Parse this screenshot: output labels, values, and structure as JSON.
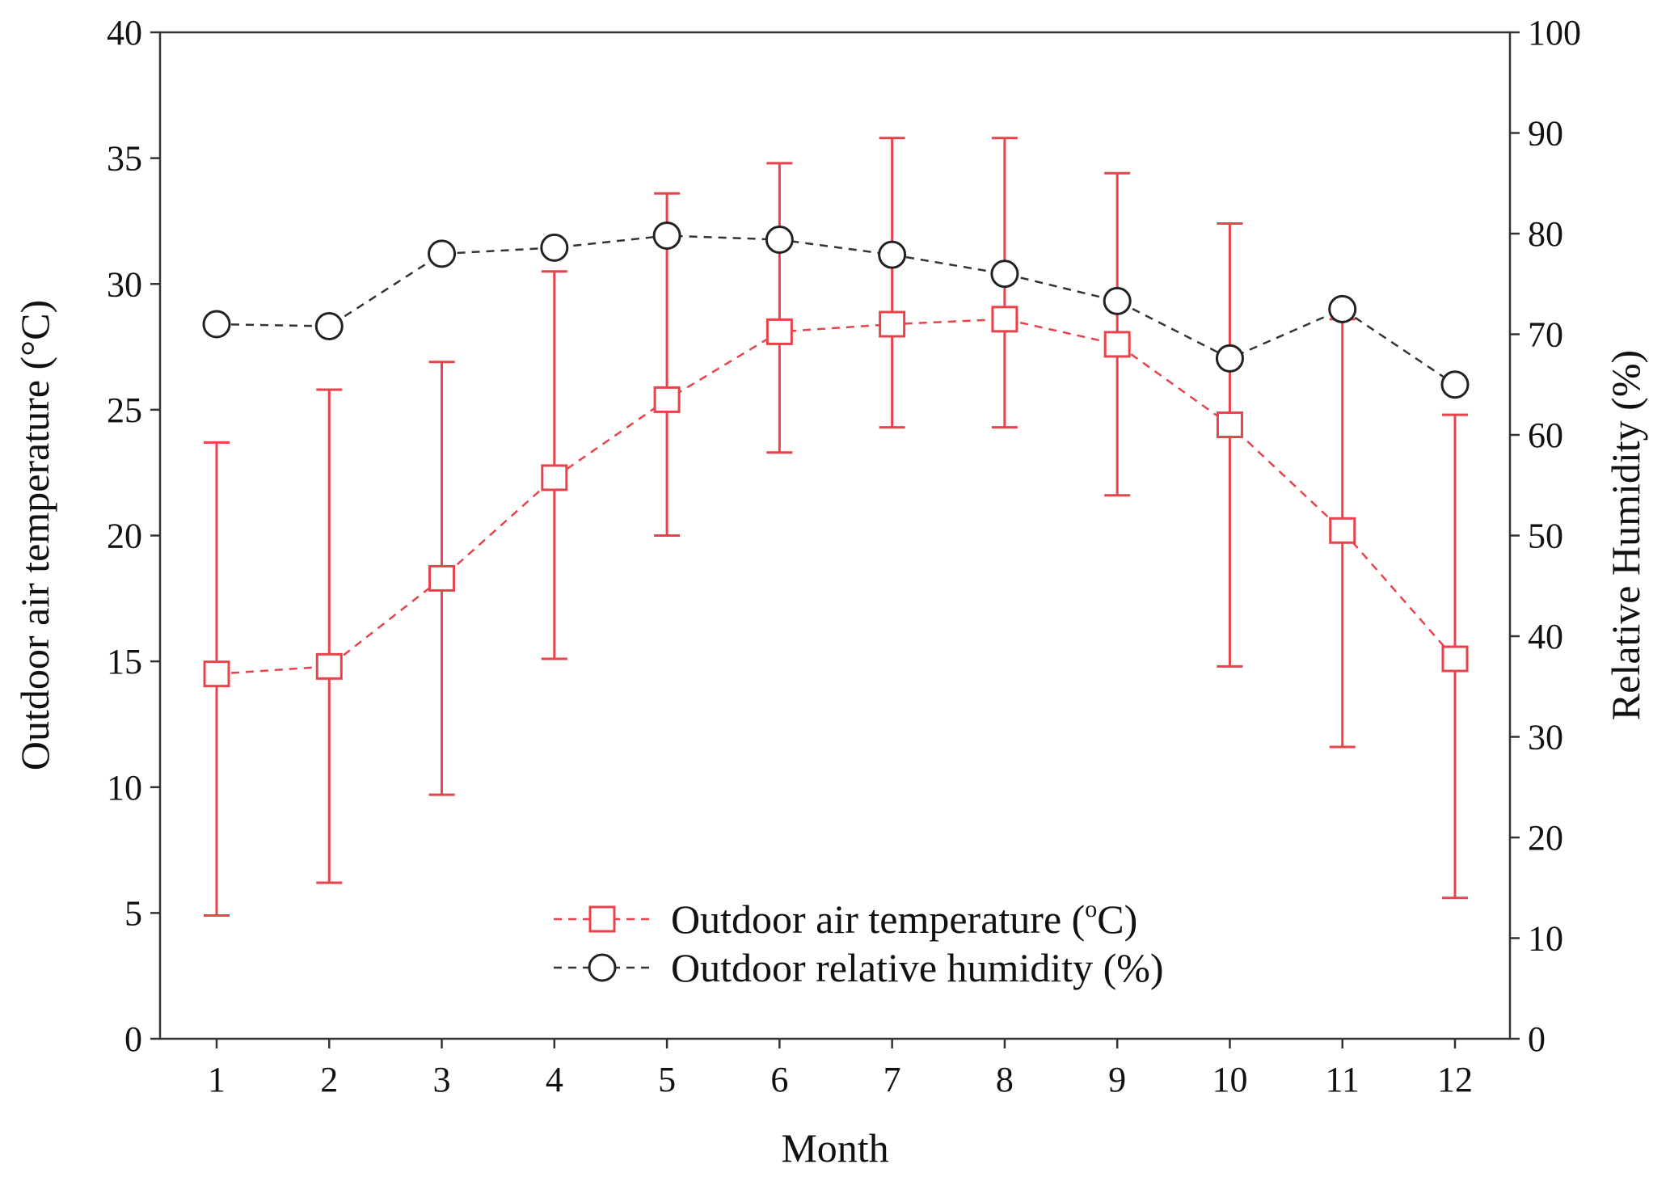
{
  "chart_data": {
    "type": "line",
    "title": "",
    "xlabel": "Month",
    "ylabel_left": "Outdoor air temperature (°C)",
    "ylabel_right": "Relative Humidity (%)",
    "categories": [
      "1",
      "2",
      "3",
      "4",
      "5",
      "6",
      "7",
      "8",
      "9",
      "10",
      "11",
      "12"
    ],
    "left_ylim": [
      0,
      40
    ],
    "left_yticks": [
      "0",
      "5",
      "10",
      "15",
      "20",
      "25",
      "30",
      "35",
      "40"
    ],
    "right_ylim": [
      0,
      100
    ],
    "right_yticks": [
      "0",
      "10",
      "20",
      "30",
      "40",
      "50",
      "60",
      "70",
      "80",
      "90",
      "100"
    ],
    "grid": false,
    "legend_position": "bottom-center",
    "series": [
      {
        "name": "Outdoor air temperature (°C)",
        "legend_label": "Outdoor air temperature (",
        "legend_sup": "o",
        "legend_suffix": "C)",
        "axis": "left",
        "color": "#e8424b",
        "marker": "square",
        "values": [
          14.5,
          14.8,
          18.3,
          22.3,
          25.4,
          28.1,
          28.4,
          28.6,
          27.6,
          24.4,
          20.2,
          15.1
        ],
        "error_low": [
          4.9,
          6.2,
          9.7,
          15.1,
          20.0,
          23.3,
          24.3,
          24.3,
          21.6,
          14.8,
          11.6,
          5.6
        ],
        "error_high": [
          23.7,
          25.8,
          26.9,
          30.5,
          33.6,
          34.8,
          35.8,
          35.8,
          34.4,
          32.4,
          28.6,
          24.8
        ]
      },
      {
        "name": "Outdoor relative humidity (%)",
        "legend_label": "Outdoor  relative humidity (%)",
        "axis": "right",
        "color": "#222222",
        "marker": "circle",
        "values": [
          71.0,
          70.8,
          78.0,
          78.6,
          79.8,
          79.4,
          77.9,
          76.0,
          73.3,
          67.6,
          72.5,
          65.0
        ]
      }
    ]
  }
}
